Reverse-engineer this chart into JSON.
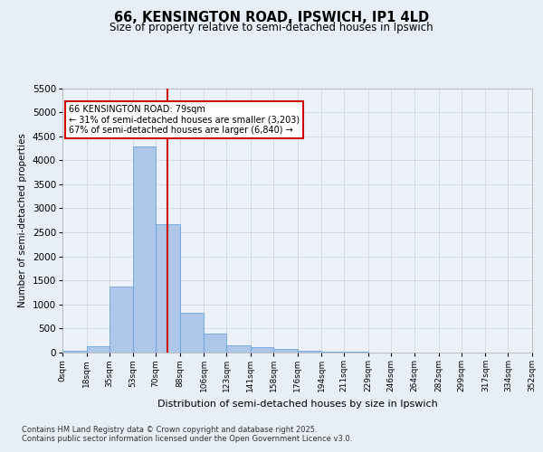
{
  "title1": "66, KENSINGTON ROAD, IPSWICH, IP1 4LD",
  "title2": "Size of property relative to semi-detached houses in Ipswich",
  "xlabel": "Distribution of semi-detached houses by size in Ipswich",
  "ylabel": "Number of semi-detached properties",
  "bin_edges": [
    0,
    18,
    35,
    53,
    70,
    88,
    106,
    123,
    141,
    158,
    176,
    194,
    211,
    229,
    246,
    264,
    282,
    299,
    317,
    334,
    352
  ],
  "bin_labels": [
    "0sqm",
    "18sqm",
    "35sqm",
    "53sqm",
    "70sqm",
    "88sqm",
    "106sqm",
    "123sqm",
    "141sqm",
    "158sqm",
    "176sqm",
    "194sqm",
    "211sqm",
    "229sqm",
    "246sqm",
    "264sqm",
    "282sqm",
    "299sqm",
    "317sqm",
    "334sqm",
    "352sqm"
  ],
  "counts": [
    30,
    130,
    1370,
    4280,
    2670,
    830,
    400,
    150,
    120,
    80,
    40,
    20,
    10,
    5,
    3,
    2,
    1,
    1,
    0,
    0
  ],
  "property_size": 79,
  "bar_color": "#aec6e8",
  "bar_edge_color": "#5b9bd5",
  "red_line_color": "#cc0000",
  "annotation_text": "66 KENSINGTON ROAD: 79sqm\n← 31% of semi-detached houses are smaller (3,203)\n67% of semi-detached houses are larger (6,840) →",
  "box_color": "#ffffff",
  "box_edge_color": "#cc0000",
  "footer_line1": "Contains HM Land Registry data © Crown copyright and database right 2025.",
  "footer_line2": "Contains public sector information licensed under the Open Government Licence v3.0.",
  "ylim": [
    0,
    5500
  ],
  "yticks": [
    0,
    500,
    1000,
    1500,
    2000,
    2500,
    3000,
    3500,
    4000,
    4500,
    5000,
    5500
  ],
  "bg_color": "#e8eef5",
  "plot_bg_color": "#edf2f9"
}
